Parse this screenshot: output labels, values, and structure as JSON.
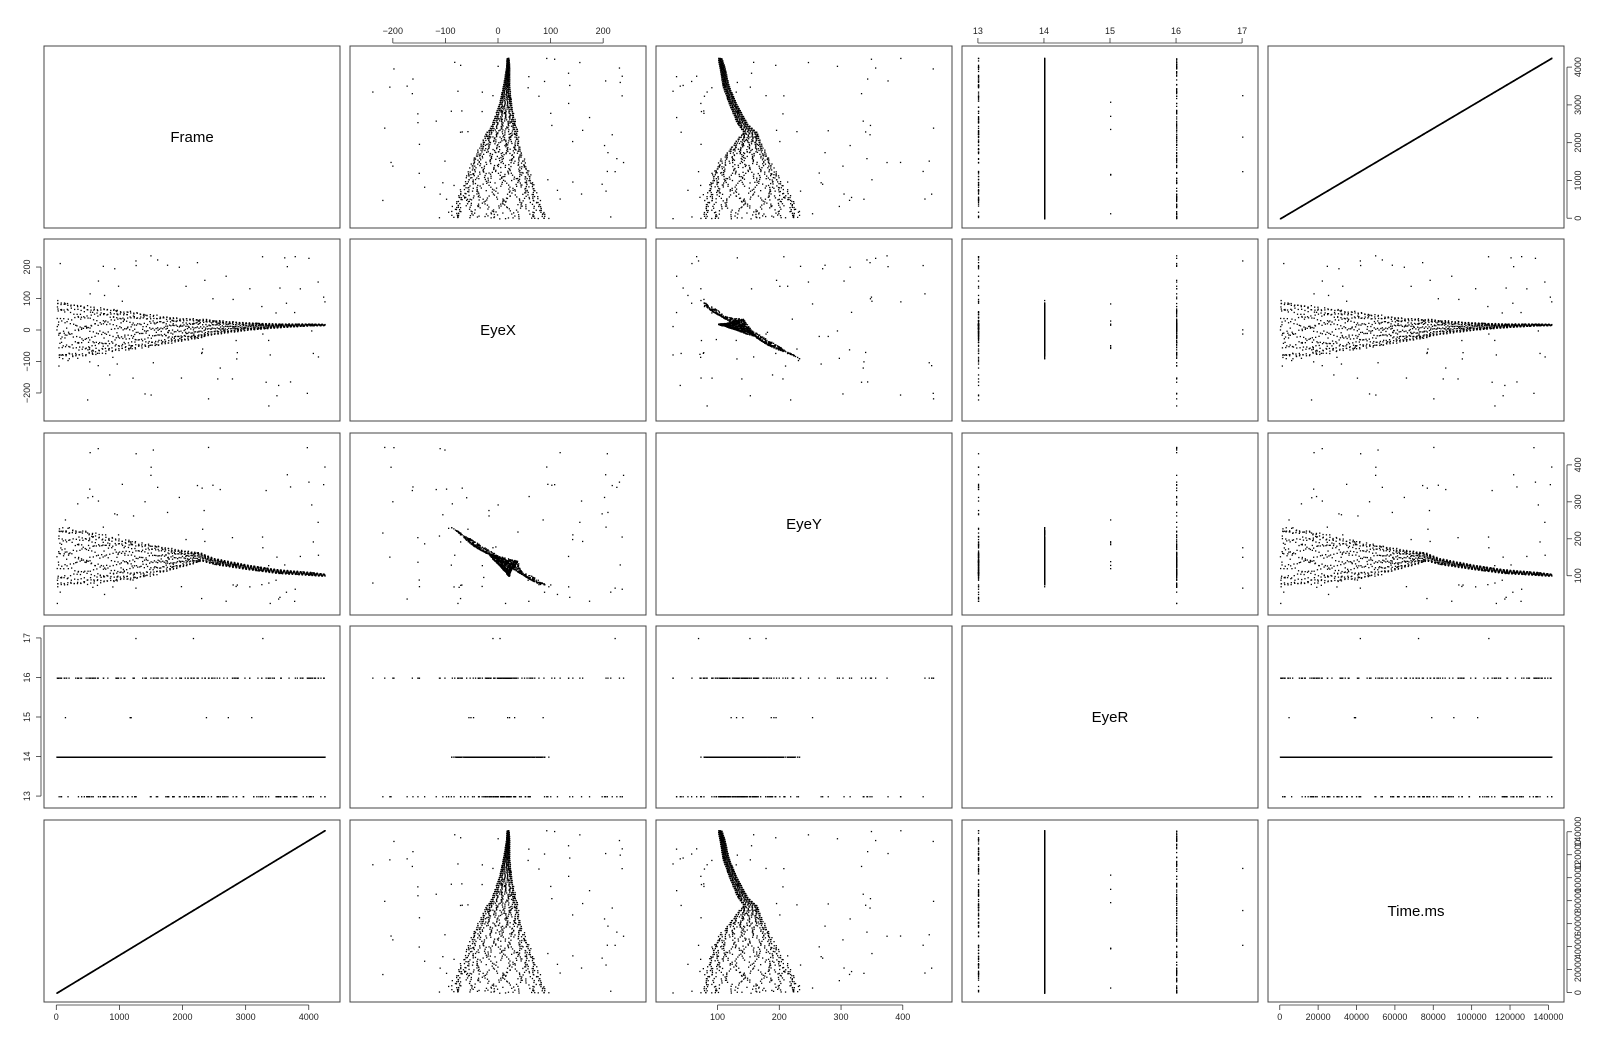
{
  "chart_data": {
    "type": "scatter-matrix",
    "variables": [
      "Frame",
      "EyeX",
      "EyeY",
      "EyeR",
      "Time.ms"
    ],
    "ranges": {
      "Frame": [
        -100,
        4400
      ],
      "EyeX": [
        -270,
        270
      ],
      "EyeY": [
        10,
        470
      ],
      "EyeR": [
        12.85,
        17.15
      ],
      "Time.ms": [
        -3000,
        145000
      ]
    },
    "ticks": {
      "Frame": [
        0,
        1000,
        2000,
        3000,
        4000
      ],
      "EyeX": [
        -200,
        -100,
        0,
        100,
        200
      ],
      "EyeY": [
        100,
        200,
        300,
        400
      ],
      "EyeR": [
        13,
        14,
        15,
        16,
        17
      ],
      "Time.ms": [
        0,
        20000,
        40000,
        60000,
        80000,
        100000,
        120000,
        140000
      ]
    },
    "axes": {
      "top": [
        "EyeX",
        "EyeR"
      ],
      "bottom": [
        "Frame",
        "EyeY",
        "Time.ms"
      ],
      "left": [
        "EyeX",
        "EyeR"
      ],
      "right": [
        "Frame",
        "EyeY",
        "Time.ms"
      ]
    },
    "profile": {
      "frame": [
        0,
        500,
        1000,
        1500,
        2000,
        2300,
        2500,
        3000,
        3500,
        4000,
        4250
      ],
      "x_center": [
        0,
        0,
        0,
        0,
        3,
        7,
        10,
        13,
        15,
        18,
        18
      ],
      "x_halfwidth": [
        90,
        75,
        62,
        48,
        36,
        28,
        22,
        12,
        6,
        3,
        2
      ],
      "y_center": [
        155,
        150,
        145,
        143,
        148,
        152,
        140,
        125,
        113,
        107,
        103
      ],
      "y_halfwidth": [
        78,
        68,
        55,
        40,
        22,
        10,
        8,
        6,
        5,
        4,
        3
      ]
    },
    "eyer_levels": {
      "main": 14,
      "other": [
        13,
        15,
        16,
        17
      ]
    },
    "time_per_frame_ms": 33.3,
    "grid": false,
    "legend": "none"
  }
}
